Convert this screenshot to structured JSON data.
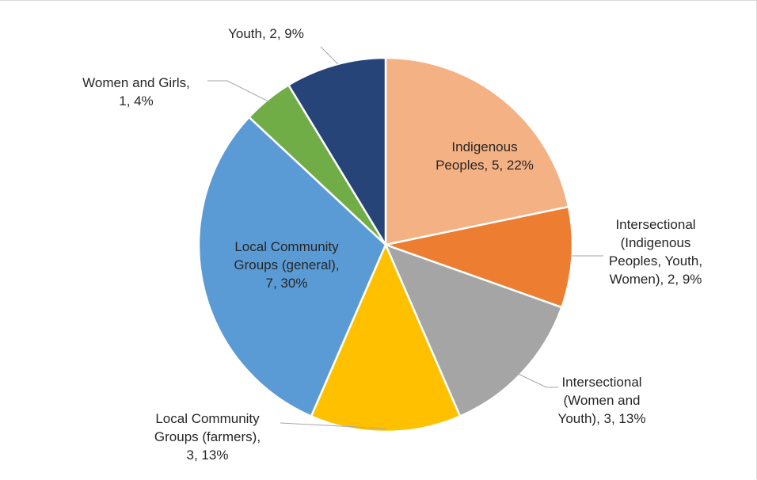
{
  "chart_data": {
    "type": "pie",
    "title": "",
    "slices": [
      {
        "label": [
          "Indigenous",
          "Peoples, 5, 22%"
        ],
        "name": "Indigenous Peoples",
        "value": 5,
        "percent": 22,
        "color": "#F4B183"
      },
      {
        "label": [
          "Intersectional",
          "(Indigenous",
          "Peoples, Youth,",
          "Women), 2, 9%"
        ],
        "name": "Intersectional (Indigenous Peoples, Youth, Women)",
        "value": 2,
        "percent": 9,
        "color": "#ED7D31"
      },
      {
        "label": [
          "Intersectional",
          "(Women and",
          "Youth), 3, 13%"
        ],
        "name": "Intersectional (Women and Youth)",
        "value": 3,
        "percent": 13,
        "color": "#A5A5A5"
      },
      {
        "label": [
          "Local Community",
          "Groups (farmers),",
          "3, 13%"
        ],
        "name": "Local Community Groups (farmers)",
        "value": 3,
        "percent": 13,
        "color": "#FFC000"
      },
      {
        "label": [
          "Local Community",
          "Groups (general),",
          "7, 30%"
        ],
        "name": "Local Community Groups (general)",
        "value": 7,
        "percent": 30,
        "color": "#5B9BD5"
      },
      {
        "label": [
          "Women and Girls,",
          "1, 4%"
        ],
        "name": "Women and Girls",
        "value": 1,
        "percent": 4,
        "color": "#70AD47"
      },
      {
        "label": [
          "Youth, 2, 9%"
        ],
        "name": "Youth",
        "value": 2,
        "percent": 9,
        "color": "#264478"
      }
    ]
  }
}
